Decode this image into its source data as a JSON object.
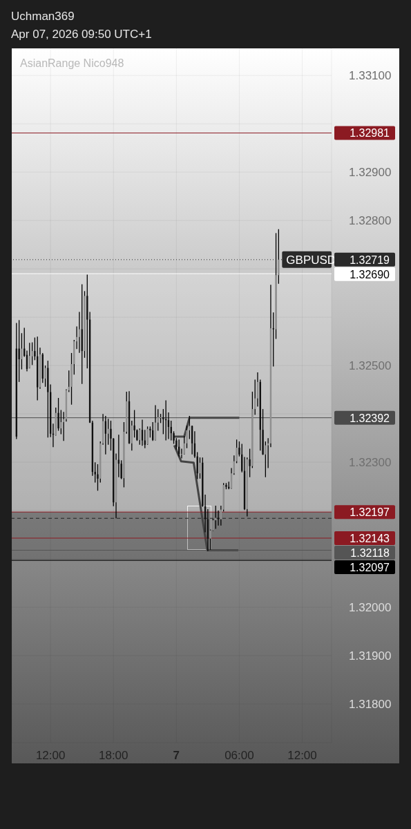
{
  "chart_data": {
    "type": "candlestick",
    "title": "Uchman369",
    "subtitle": "Apr 07, 2026 09:50 UTC+1",
    "annotations": [
      "AsianRange Nico948",
      {
        "text": "GBPUSD",
        "x": "2026-04-07T09:45",
        "y": 1.32719
      }
    ],
    "x": [
      "2026-04-06T08:45",
      "2026-04-06T09:00",
      "2026-04-06T09:15",
      "2026-04-06T09:30",
      "2026-04-06T09:45",
      "2026-04-06T10:00",
      "2026-04-06T10:15",
      "2026-04-06T10:30",
      "2026-04-06T10:45",
      "2026-04-06T11:00",
      "2026-04-06T11:15",
      "2026-04-06T11:30",
      "2026-04-06T11:45",
      "2026-04-06T12:00",
      "2026-04-06T12:15",
      "2026-04-06T12:30",
      "2026-04-06T12:45",
      "2026-04-06T13:00",
      "2026-04-06T13:15",
      "2026-04-06T13:30",
      "2026-04-06T13:45",
      "2026-04-06T14:00",
      "2026-04-06T14:15",
      "2026-04-06T14:30",
      "2026-04-06T14:45",
      "2026-04-06T15:00",
      "2026-04-06T15:15",
      "2026-04-06T15:30",
      "2026-04-06T15:45",
      "2026-04-06T16:00",
      "2026-04-06T16:15",
      "2026-04-06T16:30",
      "2026-04-06T16:45",
      "2026-04-06T17:00",
      "2026-04-06T17:15",
      "2026-04-06T17:30",
      "2026-04-06T17:45",
      "2026-04-06T18:00",
      "2026-04-06T18:15",
      "2026-04-06T18:30",
      "2026-04-06T18:45",
      "2026-04-06T19:00",
      "2026-04-06T19:15",
      "2026-04-06T19:30",
      "2026-04-06T19:45",
      "2026-04-06T20:00",
      "2026-04-06T20:15",
      "2026-04-06T20:30",
      "2026-04-06T20:45",
      "2026-04-06T21:00",
      "2026-04-06T21:15",
      "2026-04-06T21:30",
      "2026-04-06T21:45",
      "2026-04-06T22:00",
      "2026-04-06T22:15",
      "2026-04-06T22:30",
      "2026-04-06T22:45",
      "2026-04-06T23:00",
      "2026-04-06T23:15",
      "2026-04-06T23:30",
      "2026-04-06T23:45",
      "2026-04-07T00:00",
      "2026-04-07T00:15",
      "2026-04-07T00:30",
      "2026-04-07T00:45",
      "2026-04-07T01:00",
      "2026-04-07T01:15",
      "2026-04-07T01:30",
      "2026-04-07T01:45",
      "2026-04-07T02:00",
      "2026-04-07T02:15",
      "2026-04-07T02:30",
      "2026-04-07T02:45",
      "2026-04-07T03:00",
      "2026-04-07T03:15",
      "2026-04-07T03:30",
      "2026-04-07T03:45",
      "2026-04-07T04:00",
      "2026-04-07T04:15",
      "2026-04-07T04:30",
      "2026-04-07T04:45",
      "2026-04-07T05:00",
      "2026-04-07T05:15",
      "2026-04-07T05:30",
      "2026-04-07T05:45",
      "2026-04-07T06:00",
      "2026-04-07T06:15",
      "2026-04-07T06:30",
      "2026-04-07T06:45",
      "2026-04-07T07:00",
      "2026-04-07T07:15",
      "2026-04-07T07:30",
      "2026-04-07T07:45",
      "2026-04-07T08:00",
      "2026-04-07T08:15",
      "2026-04-07T08:30",
      "2026-04-07T08:45",
      "2026-04-07T09:00",
      "2026-04-07T09:15",
      "2026-04-07T09:30",
      "2026-04-07T09:45"
    ],
    "ohlc": [
      [
        1.32535,
        1.32587,
        1.32349,
        1.32353
      ],
      [
        1.32535,
        1.32593,
        1.32467,
        1.32513
      ],
      [
        1.32513,
        1.32566,
        1.32493,
        1.32535
      ],
      [
        1.32535,
        1.32577,
        1.32519,
        1.3252
      ],
      [
        1.32522,
        1.3253,
        1.32489,
        1.32493
      ],
      [
        1.32495,
        1.32546,
        1.32495,
        1.3252
      ],
      [
        1.32519,
        1.32547,
        1.32502,
        1.3253
      ],
      [
        1.3253,
        1.32557,
        1.32512,
        1.32519
      ],
      [
        1.32519,
        1.32559,
        1.32429,
        1.32455
      ],
      [
        1.32455,
        1.32536,
        1.32453,
        1.32523
      ],
      [
        1.32523,
        1.32525,
        1.32465,
        1.32473
      ],
      [
        1.32473,
        1.32499,
        1.32457,
        1.32495
      ],
      [
        1.32495,
        1.32509,
        1.32352,
        1.32445
      ],
      [
        1.32445,
        1.3246,
        1.32353,
        1.32359
      ],
      [
        1.32359,
        1.32379,
        1.32332,
        1.32357
      ],
      [
        1.32356,
        1.32412,
        1.32356,
        1.32402
      ],
      [
        1.32402,
        1.32432,
        1.32366,
        1.3237
      ],
      [
        1.3237,
        1.32407,
        1.32359,
        1.32383
      ],
      [
        1.32383,
        1.32403,
        1.32345,
        1.32389
      ],
      [
        1.32389,
        1.3245,
        1.32385,
        1.32449
      ],
      [
        1.32449,
        1.32489,
        1.32446,
        1.32456
      ],
      [
        1.32456,
        1.32525,
        1.3242,
        1.32503
      ],
      [
        1.32503,
        1.32552,
        1.32482,
        1.3255
      ],
      [
        1.3255,
        1.3258,
        1.32535,
        1.32559
      ],
      [
        1.32559,
        1.3261,
        1.32527,
        1.32575
      ],
      [
        1.32575,
        1.32667,
        1.32463,
        1.3253
      ],
      [
        1.3253,
        1.32653,
        1.32517,
        1.32644
      ],
      [
        1.32644,
        1.32687,
        1.32495,
        1.32595
      ],
      [
        1.32595,
        1.3261,
        1.32382,
        1.32382
      ],
      [
        1.32382,
        1.32385,
        1.32273,
        1.3228
      ],
      [
        1.3228,
        1.32299,
        1.32259,
        1.32275
      ],
      [
        1.32275,
        1.32295,
        1.32242,
        1.32266
      ],
      [
        1.32266,
        1.32342,
        1.32259,
        1.32339
      ],
      [
        1.32339,
        1.32399,
        1.32337,
        1.32385
      ],
      [
        1.32385,
        1.32395,
        1.32317,
        1.32359
      ],
      [
        1.32359,
        1.32389,
        1.32337,
        1.32369
      ],
      [
        1.32369,
        1.32385,
        1.32325,
        1.32349
      ],
      [
        1.32349,
        1.32349,
        1.3221,
        1.32217
      ],
      [
        1.32217,
        1.32317,
        1.32185,
        1.32305
      ],
      [
        1.32305,
        1.32356,
        1.3227,
        1.32297
      ],
      [
        1.32297,
        1.32303,
        1.32266,
        1.32267
      ],
      [
        1.32267,
        1.32382,
        1.32249,
        1.32363
      ],
      [
        1.32363,
        1.32445,
        1.3236,
        1.32426
      ],
      [
        1.32426,
        1.32446,
        1.32339,
        1.32339
      ],
      [
        1.32339,
        1.32385,
        1.32325,
        1.32376
      ],
      [
        1.32376,
        1.32407,
        1.32352,
        1.32366
      ],
      [
        1.32366,
        1.32367,
        1.32345,
        1.32346
      ],
      [
        1.32346,
        1.32369,
        1.32337,
        1.32367
      ],
      [
        1.32367,
        1.32387,
        1.32335,
        1.32345
      ],
      [
        1.32345,
        1.32366,
        1.3233,
        1.32336
      ],
      [
        1.32337,
        1.32373,
        1.32337,
        1.32369
      ],
      [
        1.32369,
        1.32373,
        1.32352,
        1.32366
      ],
      [
        1.32366,
        1.32382,
        1.32345,
        1.32346
      ],
      [
        1.32346,
        1.32417,
        1.32346,
        1.32382
      ],
      [
        1.32382,
        1.32409,
        1.32366,
        1.32393
      ],
      [
        1.32393,
        1.32399,
        1.32382,
        1.32393
      ],
      [
        1.32393,
        1.32409,
        1.32359,
        1.32389
      ],
      [
        1.32389,
        1.32427,
        1.32346,
        1.32387
      ],
      [
        1.32387,
        1.32402,
        1.32349,
        1.32373
      ],
      [
        1.32373,
        1.32385,
        1.32346,
        1.3236
      ],
      [
        1.3236,
        1.32363,
        1.32339,
        1.32345
      ],
      [
        1.32345,
        1.32349,
        1.32327,
        1.32332
      ],
      [
        1.32332,
        1.32346,
        1.32313,
        1.32317
      ],
      [
        1.32317,
        1.32327,
        1.32309,
        1.32317
      ],
      [
        1.32317,
        1.32353,
        1.32317,
        1.32339
      ],
      [
        1.32339,
        1.32375,
        1.3233,
        1.32366
      ],
      [
        1.32366,
        1.32395,
        1.32349,
        1.32375
      ],
      [
        1.32375,
        1.32375,
        1.32317,
        1.32339
      ],
      [
        1.32339,
        1.32363,
        1.3231,
        1.32312
      ],
      [
        1.32312,
        1.3232,
        1.32266,
        1.32277
      ],
      [
        1.32277,
        1.32309,
        1.32267,
        1.32299
      ],
      [
        1.32299,
        1.32309,
        1.32209,
        1.32209
      ],
      [
        1.32209,
        1.32232,
        1.32156,
        1.32182
      ],
      [
        1.32182,
        1.32202,
        1.32117,
        1.32142
      ],
      [
        1.32142,
        1.3216,
        1.3212,
        1.32159
      ],
      [
        1.32159,
        1.32182,
        1.32159,
        1.3218
      ],
      [
        1.3218,
        1.32209,
        1.32163,
        1.32185
      ],
      [
        1.32185,
        1.32199,
        1.3217,
        1.32182
      ],
      [
        1.32182,
        1.32209,
        1.3217,
        1.32202
      ],
      [
        1.32202,
        1.32256,
        1.32199,
        1.32253
      ],
      [
        1.32253,
        1.32256,
        1.32245,
        1.32249
      ],
      [
        1.32249,
        1.32259,
        1.32245,
        1.32246
      ],
      [
        1.32246,
        1.32287,
        1.32246,
        1.32277
      ],
      [
        1.32277,
        1.32313,
        1.32275,
        1.32302
      ],
      [
        1.32302,
        1.32346,
        1.32299,
        1.3233
      ],
      [
        1.3233,
        1.32342,
        1.32313,
        1.32316
      ],
      [
        1.32316,
        1.32337,
        1.3228,
        1.32282
      ],
      [
        1.32282,
        1.3231,
        1.32202,
        1.32203
      ],
      [
        1.32203,
        1.32309,
        1.32189,
        1.32306
      ],
      [
        1.32306,
        1.32327,
        1.3227,
        1.32292
      ],
      [
        1.32292,
        1.32445,
        1.32289,
        1.3241
      ],
      [
        1.3241,
        1.3247,
        1.32399,
        1.32432
      ],
      [
        1.32432,
        1.32485,
        1.32416,
        1.32466
      ],
      [
        1.32466,
        1.3247,
        1.32325,
        1.32367
      ],
      [
        1.32367,
        1.32409,
        1.32316,
        1.32316
      ],
      [
        1.32316,
        1.32342,
        1.3227,
        1.32335
      ],
      [
        1.32335,
        1.32349,
        1.32289,
        1.32339
      ],
      [
        1.32339,
        1.32666,
        1.32332,
        1.32577
      ],
      [
        1.32577,
        1.32609,
        1.32499,
        1.32575
      ],
      [
        1.32575,
        1.32773,
        1.32556,
        1.32687
      ],
      [
        1.32687,
        1.32781,
        1.3267,
        1.32719
      ]
    ],
    "series": [
      {
        "type": "line",
        "x": [
          "2026-04-06T23:45",
          "2026-04-07T00:45",
          "2026-04-07T01:15",
          "2026-04-07T06:00"
        ],
        "values": [
          1.32353,
          1.32353,
          1.32392,
          1.32392
        ],
        "color": "#444444"
      },
      {
        "type": "line",
        "x": [
          "2026-04-06T23:48",
          "2026-04-07T00:27",
          "2026-04-07T01:39",
          "2026-04-07T02:57",
          "2026-04-07T05:54"
        ],
        "values": [
          1.32335,
          1.32302,
          1.32299,
          1.32118,
          1.32118
        ],
        "color": "#444444"
      }
    ],
    "xlim": [
      "2026-04-06T08:18",
      "2026-04-07T14:48"
    ],
    "xticks": [
      {
        "value": "2026-04-06T12:00",
        "label": "12:00"
      },
      {
        "value": "2026-04-06T18:00",
        "label": "18:00"
      },
      {
        "value": "2026-04-07T00:00",
        "label": "7"
      },
      {
        "value": "2026-04-07T06:00",
        "label": "06:00"
      },
      {
        "value": "2026-04-07T12:00",
        "label": "12:00"
      }
    ],
    "ylim": [
      1.3172,
      1.33156
    ],
    "yticks": [
      {
        "value": 1.318,
        "label": "1.31800"
      },
      {
        "value": 1.319,
        "label": "1.31900"
      },
      {
        "value": 1.32,
        "label": "1.32000"
      },
      {
        "value": 1.321,
        "label": null
      },
      {
        "value": 1.322,
        "label": null
      },
      {
        "value": 1.323,
        "label": "1.32300"
      },
      {
        "value": 1.324,
        "label": null
      },
      {
        "value": 1.325,
        "label": "1.32500"
      },
      {
        "value": 1.326,
        "label": null
      },
      {
        "value": 1.327,
        "label": null
      },
      {
        "value": 1.328,
        "label": "1.32800"
      },
      {
        "value": 1.329,
        "label": "1.32900"
      },
      {
        "value": 1.33,
        "label": null
      },
      {
        "value": 1.331,
        "label": "1.33100"
      }
    ],
    "ref_lines": [
      {
        "axis": "y",
        "value": 1.32981,
        "label": "1.32981",
        "color": "#8b1a22",
        "line_style": "solid"
      },
      {
        "axis": "y",
        "value": 1.32719,
        "label": "1.32719",
        "color": "#2a2a2a",
        "line_style": "dotted"
      },
      {
        "axis": "y",
        "value": 1.3269,
        "label": "1.32690",
        "color": "#ffffff",
        "line_style": "solid"
      },
      {
        "axis": "y",
        "value": 1.32392,
        "label": "1.32392",
        "color": "#4a4a4a",
        "line_style": "solid"
      },
      {
        "axis": "y",
        "value": 1.32197,
        "label": "1.32197",
        "color": "#8b1a22",
        "line_style": "solid"
      },
      {
        "axis": "y",
        "value": 1.32184,
        "color": "#222222",
        "line_style": "dashed"
      },
      {
        "axis": "y",
        "value": 1.32143,
        "label": "1.32143",
        "color": "#8b1a22",
        "line_style": "solid"
      },
      {
        "axis": "y",
        "value": 1.32118,
        "label": "1.32118",
        "color": "#555555",
        "line_style": "solid"
      },
      {
        "axis": "y",
        "value": 1.32097,
        "label": "1.32097",
        "color": "#000000",
        "line_style": "solid"
      }
    ],
    "bands": [
      {
        "axis": "y",
        "from": 1.32197,
        "to": 1.3269,
        "color": "#e8e8e8"
      },
      {
        "axis": "y",
        "from": 1.32097,
        "to": 1.32197,
        "color": "#4a4a4a"
      }
    ],
    "grid": true
  }
}
